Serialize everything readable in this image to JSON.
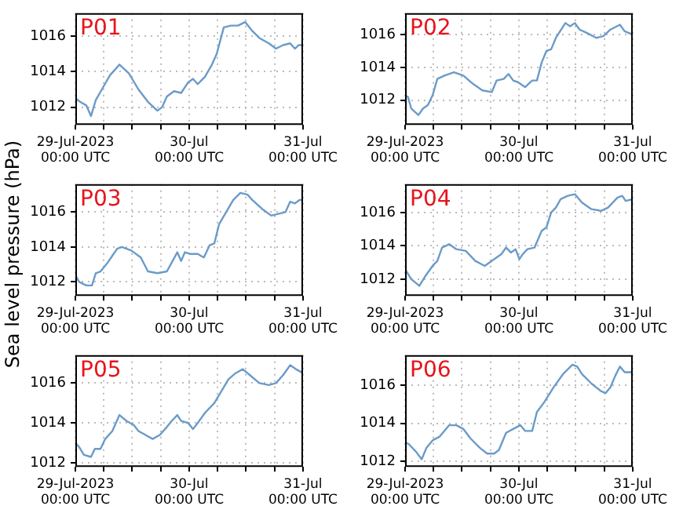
{
  "chart_data": [
    {
      "type": "line",
      "title": "P01",
      "x": [
        "2023-07-29T00:00",
        "2023-07-29T01:00",
        "2023-07-29T02:18",
        "2023-07-29T03:18",
        "2023-07-29T04:18",
        "2023-07-29T05:48",
        "2023-07-29T07:18",
        "2023-07-29T09:18",
        "2023-07-29T11:18",
        "2023-07-29T13:18",
        "2023-07-29T15:18",
        "2023-07-29T17:18",
        "2023-07-29T18:18",
        "2023-07-29T19:18",
        "2023-07-29T20:48",
        "2023-07-29T22:18",
        "2023-07-29T23:48",
        "2023-07-30T00:48",
        "2023-07-30T01:48",
        "2023-07-30T03:18",
        "2023-07-30T04:48",
        "2023-07-30T05:48",
        "2023-07-30T07:18",
        "2023-07-30T08:48",
        "2023-07-30T10:18",
        "2023-07-30T11:48",
        "2023-07-30T13:18",
        "2023-07-30T14:48",
        "2023-07-30T16:48",
        "2023-07-30T18:18",
        "2023-07-30T19:48",
        "2023-07-30T21:18",
        "2023-07-30T22:18",
        "2023-07-30T23:06",
        "2023-07-31T00:00"
      ],
      "series": [
        {
          "color": "#6b9bc8",
          "values": [
            1012.5,
            1012.3,
            1012.1,
            1011.5,
            1012.4,
            1013.1,
            1013.8,
            1014.4,
            1013.9,
            1013.0,
            1012.3,
            1011.8,
            1012.0,
            1012.6,
            1012.9,
            1012.8,
            1013.4,
            1013.6,
            1013.3,
            1013.7,
            1014.4,
            1015.0,
            1016.5,
            1016.6,
            1016.6,
            1016.8,
            1016.3,
            1015.9,
            1015.6,
            1015.3,
            1015.5,
            1015.6,
            1015.3,
            1015.5,
            1015.5
          ]
        }
      ],
      "xlim": [
        "2023-07-29T00:00",
        "2023-07-31T00:00"
      ],
      "ylim": [
        1011,
        1017.3
      ],
      "yticks": [
        1012,
        1014,
        1016
      ],
      "xticks": [
        {
          "value": "2023-07-29T00:00",
          "label": "29-Jul-2023\n00:00 UTC"
        },
        {
          "value": "2023-07-29T06:00",
          "label": null
        },
        {
          "value": "2023-07-29T12:00",
          "label": null
        },
        {
          "value": "2023-07-29T18:00",
          "label": null
        },
        {
          "value": "2023-07-30T00:00",
          "label": "30-Jul\n00:00 UTC"
        },
        {
          "value": "2023-07-30T06:00",
          "label": null
        },
        {
          "value": "2023-07-30T12:00",
          "label": null
        },
        {
          "value": "2023-07-30T18:00",
          "label": null
        },
        {
          "value": "2023-07-31T00:00",
          "label": "31-Jul\n00:00 UTC"
        }
      ],
      "grid": true,
      "line_style": "solid"
    },
    {
      "type": "line",
      "title": "P02",
      "x": [
        "2023-07-29T00:00",
        "2023-07-29T00:36",
        "2023-07-29T01:18",
        "2023-07-29T02:48",
        "2023-07-29T03:48",
        "2023-07-29T04:48",
        "2023-07-29T05:48",
        "2023-07-29T06:48",
        "2023-07-29T08:18",
        "2023-07-29T10:18",
        "2023-07-29T12:18",
        "2023-07-29T14:18",
        "2023-07-29T16:18",
        "2023-07-29T18:18",
        "2023-07-29T19:18",
        "2023-07-29T20:48",
        "2023-07-29T21:48",
        "2023-07-29T22:48",
        "2023-07-29T23:48",
        "2023-07-30T01:18",
        "2023-07-30T02:48",
        "2023-07-30T03:48",
        "2023-07-30T04:48",
        "2023-07-30T05:48",
        "2023-07-30T06:48",
        "2023-07-30T07:48",
        "2023-07-30T09:48",
        "2023-07-30T10:48",
        "2023-07-30T11:48",
        "2023-07-30T12:48",
        "2023-07-30T14:18",
        "2023-07-30T16:18",
        "2023-07-30T17:48",
        "2023-07-30T19:18",
        "2023-07-30T21:18",
        "2023-07-30T22:18",
        "2023-07-31T00:00"
      ],
      "series": [
        {
          "color": "#6b9bc8",
          "values": [
            1012.3,
            1012.2,
            1011.5,
            1011.1,
            1011.5,
            1011.7,
            1012.3,
            1013.3,
            1013.5,
            1013.7,
            1013.5,
            1013.0,
            1012.6,
            1012.5,
            1013.2,
            1013.3,
            1013.6,
            1013.2,
            1013.1,
            1012.8,
            1013.2,
            1013.2,
            1014.3,
            1015.0,
            1015.1,
            1015.8,
            1016.7,
            1016.5,
            1016.7,
            1016.3,
            1016.1,
            1015.8,
            1015.9,
            1016.3,
            1016.6,
            1016.2,
            1016.0
          ]
        }
      ],
      "xlim": [
        "2023-07-29T00:00",
        "2023-07-31T00:00"
      ],
      "ylim": [
        1010.5,
        1017.3
      ],
      "yticks": [
        1012,
        1014,
        1016
      ],
      "xticks": [
        {
          "value": "2023-07-29T00:00",
          "label": "29-Jul-2023\n00:00 UTC"
        },
        {
          "value": "2023-07-29T06:00",
          "label": null
        },
        {
          "value": "2023-07-29T12:00",
          "label": null
        },
        {
          "value": "2023-07-29T18:00",
          "label": null
        },
        {
          "value": "2023-07-30T00:00",
          "label": "30-Jul\n00:00 UTC"
        },
        {
          "value": "2023-07-30T06:00",
          "label": null
        },
        {
          "value": "2023-07-30T12:00",
          "label": null
        },
        {
          "value": "2023-07-30T18:00",
          "label": null
        },
        {
          "value": "2023-07-31T00:00",
          "label": "31-Jul\n00:00 UTC"
        }
      ],
      "grid": true,
      "line_style": "solid"
    },
    {
      "type": "line",
      "title": "P03",
      "ylabel": "Sea level pressure (hPa)",
      "x": [
        "2023-07-29T00:00",
        "2023-07-29T00:48",
        "2023-07-29T02:18",
        "2023-07-29T03:30",
        "2023-07-29T04:18",
        "2023-07-29T05:18",
        "2023-07-29T06:48",
        "2023-07-29T07:48",
        "2023-07-29T08:48",
        "2023-07-29T09:48",
        "2023-07-29T11:48",
        "2023-07-29T13:48",
        "2023-07-29T15:18",
        "2023-07-29T17:18",
        "2023-07-29T19:18",
        "2023-07-29T20:18",
        "2023-07-29T21:30",
        "2023-07-29T22:18",
        "2023-07-29T23:06",
        "2023-07-30T00:18",
        "2023-07-30T01:48",
        "2023-07-30T03:06",
        "2023-07-30T04:18",
        "2023-07-30T05:18",
        "2023-07-30T06:18",
        "2023-07-30T07:48",
        "2023-07-30T09:18",
        "2023-07-30T10:48",
        "2023-07-30T12:18",
        "2023-07-30T13:18",
        "2023-07-30T15:18",
        "2023-07-30T17:18",
        "2023-07-30T18:48",
        "2023-07-30T20:18",
        "2023-07-30T21:18",
        "2023-07-30T22:18",
        "2023-07-30T23:18",
        "2023-07-31T00:00"
      ],
      "series": [
        {
          "color": "#6b9bc8",
          "values": [
            1012.4,
            1012.0,
            1011.8,
            1011.8,
            1012.5,
            1012.6,
            1013.1,
            1013.5,
            1013.9,
            1014.0,
            1013.8,
            1013.4,
            1012.6,
            1012.5,
            1012.6,
            1013.1,
            1013.7,
            1013.2,
            1013.7,
            1013.6,
            1013.6,
            1013.4,
            1014.1,
            1014.2,
            1015.3,
            1016.0,
            1016.7,
            1017.1,
            1017.0,
            1016.7,
            1016.2,
            1015.8,
            1015.9,
            1016.0,
            1016.6,
            1016.5,
            1016.7,
            1016.7
          ]
        }
      ],
      "xlim": [
        "2023-07-29T00:00",
        "2023-07-31T00:00"
      ],
      "ylim": [
        1011.2,
        1017.6
      ],
      "yticks": [
        1012,
        1014,
        1016
      ],
      "xticks": [
        {
          "value": "2023-07-29T00:00",
          "label": "29-Jul-2023\n00:00 UTC"
        },
        {
          "value": "2023-07-29T06:00",
          "label": null
        },
        {
          "value": "2023-07-29T12:00",
          "label": null
        },
        {
          "value": "2023-07-29T18:00",
          "label": null
        },
        {
          "value": "2023-07-30T00:00",
          "label": "30-Jul\n00:00 UTC"
        },
        {
          "value": "2023-07-30T06:00",
          "label": null
        },
        {
          "value": "2023-07-30T12:00",
          "label": null
        },
        {
          "value": "2023-07-30T18:00",
          "label": null
        },
        {
          "value": "2023-07-31T00:00",
          "label": "31-Jul\n00:00 UTC"
        }
      ],
      "grid": true,
      "line_style": "solid"
    },
    {
      "type": "line",
      "title": "P04",
      "x": [
        "2023-07-29T00:00",
        "2023-07-29T01:18",
        "2023-07-29T03:00",
        "2023-07-29T04:18",
        "2023-07-29T05:48",
        "2023-07-29T06:48",
        "2023-07-29T07:48",
        "2023-07-29T09:18",
        "2023-07-29T10:48",
        "2023-07-29T12:48",
        "2023-07-29T14:48",
        "2023-07-29T16:48",
        "2023-07-29T18:18",
        "2023-07-29T19:18",
        "2023-07-29T20:18",
        "2023-07-29T21:18",
        "2023-07-29T22:18",
        "2023-07-29T23:18",
        "2023-07-30T00:06",
        "2023-07-30T00:48",
        "2023-07-30T01:48",
        "2023-07-30T03:18",
        "2023-07-30T04:48",
        "2023-07-30T05:48",
        "2023-07-30T06:48",
        "2023-07-30T07:48",
        "2023-07-30T08:48",
        "2023-07-30T10:18",
        "2023-07-30T11:48",
        "2023-07-30T13:18",
        "2023-07-30T15:18",
        "2023-07-30T17:18",
        "2023-07-30T18:48",
        "2023-07-30T20:48",
        "2023-07-30T21:48",
        "2023-07-30T22:30",
        "2023-07-31T00:00"
      ],
      "series": [
        {
          "color": "#6b9bc8",
          "values": [
            1012.6,
            1012.0,
            1011.6,
            1012.2,
            1012.8,
            1013.1,
            1013.9,
            1014.1,
            1013.8,
            1013.7,
            1013.1,
            1012.8,
            1013.1,
            1013.3,
            1013.5,
            1013.9,
            1013.6,
            1013.8,
            1013.2,
            1013.5,
            1013.8,
            1013.9,
            1014.9,
            1015.1,
            1016.0,
            1016.3,
            1016.8,
            1017.0,
            1017.1,
            1016.6,
            1016.2,
            1016.1,
            1016.3,
            1016.9,
            1017.0,
            1016.7,
            1016.8
          ]
        }
      ],
      "xlim": [
        "2023-07-29T00:00",
        "2023-07-31T00:00"
      ],
      "ylim": [
        1011,
        1017.7
      ],
      "yticks": [
        1012,
        1014,
        1016
      ],
      "xticks": [
        {
          "value": "2023-07-29T00:00",
          "label": "29-Jul-2023\n00:00 UTC"
        },
        {
          "value": "2023-07-29T06:00",
          "label": null
        },
        {
          "value": "2023-07-29T12:00",
          "label": null
        },
        {
          "value": "2023-07-29T18:00",
          "label": null
        },
        {
          "value": "2023-07-30T00:00",
          "label": "30-Jul\n00:00 UTC"
        },
        {
          "value": "2023-07-30T06:00",
          "label": null
        },
        {
          "value": "2023-07-30T12:00",
          "label": null
        },
        {
          "value": "2023-07-30T18:00",
          "label": null
        },
        {
          "value": "2023-07-31T00:00",
          "label": "31-Jul\n00:00 UTC"
        }
      ],
      "grid": true,
      "line_style": "solid"
    },
    {
      "type": "line",
      "title": "P05",
      "x": [
        "2023-07-29T00:00",
        "2023-07-29T00:48",
        "2023-07-29T01:48",
        "2023-07-29T03:18",
        "2023-07-29T04:06",
        "2023-07-29T05:18",
        "2023-07-29T06:18",
        "2023-07-29T07:48",
        "2023-07-29T09:18",
        "2023-07-29T10:48",
        "2023-07-29T12:18",
        "2023-07-29T13:18",
        "2023-07-29T14:48",
        "2023-07-29T16:18",
        "2023-07-29T17:48",
        "2023-07-29T19:18",
        "2023-07-29T20:18",
        "2023-07-29T21:30",
        "2023-07-29T22:18",
        "2023-07-29T23:48",
        "2023-07-30T00:48",
        "2023-07-30T01:48",
        "2023-07-30T03:18",
        "2023-07-30T05:18",
        "2023-07-30T06:48",
        "2023-07-30T08:18",
        "2023-07-30T09:48",
        "2023-07-30T11:18",
        "2023-07-30T12:48",
        "2023-07-30T14:48",
        "2023-07-30T16:48",
        "2023-07-30T18:18",
        "2023-07-30T19:48",
        "2023-07-30T21:18",
        "2023-07-30T22:30",
        "2023-07-31T00:00"
      ],
      "series": [
        {
          "color": "#6b9bc8",
          "values": [
            1013.0,
            1012.8,
            1012.4,
            1012.3,
            1012.7,
            1012.7,
            1013.2,
            1013.6,
            1014.4,
            1014.1,
            1013.9,
            1013.6,
            1013.4,
            1013.2,
            1013.4,
            1013.8,
            1014.1,
            1014.4,
            1014.1,
            1014.0,
            1013.7,
            1014.0,
            1014.5,
            1015.0,
            1015.6,
            1016.2,
            1016.5,
            1016.7,
            1016.4,
            1016.0,
            1015.9,
            1016.0,
            1016.4,
            1016.9,
            1016.7,
            1016.5
          ]
        }
      ],
      "xlim": [
        "2023-07-29T00:00",
        "2023-07-31T00:00"
      ],
      "ylim": [
        1011.8,
        1017.4
      ],
      "yticks": [
        1012,
        1014,
        1016
      ],
      "xticks": [
        {
          "value": "2023-07-29T00:00",
          "label": "29-Jul-2023\n00:00 UTC"
        },
        {
          "value": "2023-07-29T06:00",
          "label": null
        },
        {
          "value": "2023-07-29T12:00",
          "label": null
        },
        {
          "value": "2023-07-29T18:00",
          "label": null
        },
        {
          "value": "2023-07-30T00:00",
          "label": "30-Jul\n00:00 UTC"
        },
        {
          "value": "2023-07-30T06:00",
          "label": null
        },
        {
          "value": "2023-07-30T12:00",
          "label": null
        },
        {
          "value": "2023-07-30T18:00",
          "label": null
        },
        {
          "value": "2023-07-31T00:00",
          "label": "31-Jul\n00:00 UTC"
        }
      ],
      "grid": true,
      "line_style": "solid"
    },
    {
      "type": "line",
      "title": "P06",
      "x": [
        "2023-07-29T00:00",
        "2023-07-29T00:48",
        "2023-07-29T02:18",
        "2023-07-29T03:30",
        "2023-07-29T04:30",
        "2023-07-29T05:48",
        "2023-07-29T07:18",
        "2023-07-29T09:18",
        "2023-07-29T10:48",
        "2023-07-29T12:18",
        "2023-07-29T13:48",
        "2023-07-29T15:48",
        "2023-07-29T17:18",
        "2023-07-29T18:48",
        "2023-07-29T19:48",
        "2023-07-29T21:18",
        "2023-07-29T22:48",
        "2023-07-30T00:18",
        "2023-07-30T01:18",
        "2023-07-30T02:48",
        "2023-07-30T03:48",
        "2023-07-30T05:18",
        "2023-07-30T07:18",
        "2023-07-30T09:18",
        "2023-07-30T11:18",
        "2023-07-30T12:18",
        "2023-07-30T13:18",
        "2023-07-30T15:18",
        "2023-07-30T17:18",
        "2023-07-30T18:18",
        "2023-07-30T19:18",
        "2023-07-30T20:18",
        "2023-07-30T21:18",
        "2023-07-30T22:18",
        "2023-07-31T00:00"
      ],
      "series": [
        {
          "color": "#6b9bc8",
          "values": [
            1013.0,
            1012.9,
            1012.5,
            1012.1,
            1012.7,
            1013.1,
            1013.3,
            1013.9,
            1013.9,
            1013.7,
            1013.2,
            1012.7,
            1012.4,
            1012.4,
            1012.6,
            1013.5,
            1013.7,
            1013.9,
            1013.6,
            1013.6,
            1014.6,
            1015.1,
            1015.9,
            1016.6,
            1017.1,
            1017.0,
            1016.6,
            1016.1,
            1015.7,
            1015.6,
            1015.9,
            1016.5,
            1017.0,
            1016.7,
            1016.7
          ]
        }
      ],
      "xlim": [
        "2023-07-29T00:00",
        "2023-07-31T00:00"
      ],
      "ylim": [
        1011.7,
        1017.6
      ],
      "yticks": [
        1012,
        1014,
        1016
      ],
      "xticks": [
        {
          "value": "2023-07-29T00:00",
          "label": "29-Jul-2023\n00:00 UTC"
        },
        {
          "value": "2023-07-29T06:00",
          "label": null
        },
        {
          "value": "2023-07-29T12:00",
          "label": null
        },
        {
          "value": "2023-07-29T18:00",
          "label": null
        },
        {
          "value": "2023-07-30T00:00",
          "label": "30-Jul\n00:00 UTC"
        },
        {
          "value": "2023-07-30T06:00",
          "label": null
        },
        {
          "value": "2023-07-30T12:00",
          "label": null
        },
        {
          "value": "2023-07-30T18:00",
          "label": null
        },
        {
          "value": "2023-07-31T00:00",
          "label": "31-Jul\n00:00 UTC"
        }
      ],
      "grid": true,
      "line_style": "solid"
    }
  ]
}
